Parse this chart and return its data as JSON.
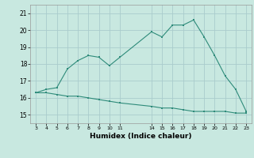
{
  "x_upper": [
    3,
    4,
    5,
    6,
    7,
    8,
    9,
    10,
    11,
    14,
    15,
    16,
    17,
    18,
    19,
    20,
    21,
    22,
    23
  ],
  "y_upper": [
    16.3,
    16.5,
    16.6,
    17.7,
    18.2,
    18.5,
    18.4,
    17.9,
    18.4,
    19.9,
    19.6,
    20.3,
    20.3,
    20.6,
    19.6,
    18.5,
    17.3,
    16.5,
    15.2
  ],
  "x_lower": [
    3,
    4,
    5,
    6,
    7,
    8,
    9,
    10,
    11,
    14,
    15,
    16,
    17,
    18,
    19,
    20,
    21,
    22,
    23
  ],
  "y_lower": [
    16.3,
    16.3,
    16.2,
    16.1,
    16.1,
    16.0,
    15.9,
    15.8,
    15.7,
    15.5,
    15.4,
    15.4,
    15.3,
    15.2,
    15.2,
    15.2,
    15.2,
    15.1,
    15.1
  ],
  "line_color": "#2e8b7a",
  "bg_color": "#c8e8e0",
  "grid_color": "#aacccc",
  "xlabel": "Humidex (Indice chaleur)",
  "yticks": [
    15,
    16,
    17,
    18,
    19,
    20,
    21
  ],
  "xticks": [
    3,
    4,
    5,
    6,
    7,
    8,
    9,
    10,
    11,
    14,
    15,
    16,
    17,
    18,
    19,
    20,
    21,
    22,
    23
  ],
  "ylim": [
    14.5,
    21.5
  ],
  "xlim": [
    2.5,
    23.5
  ]
}
